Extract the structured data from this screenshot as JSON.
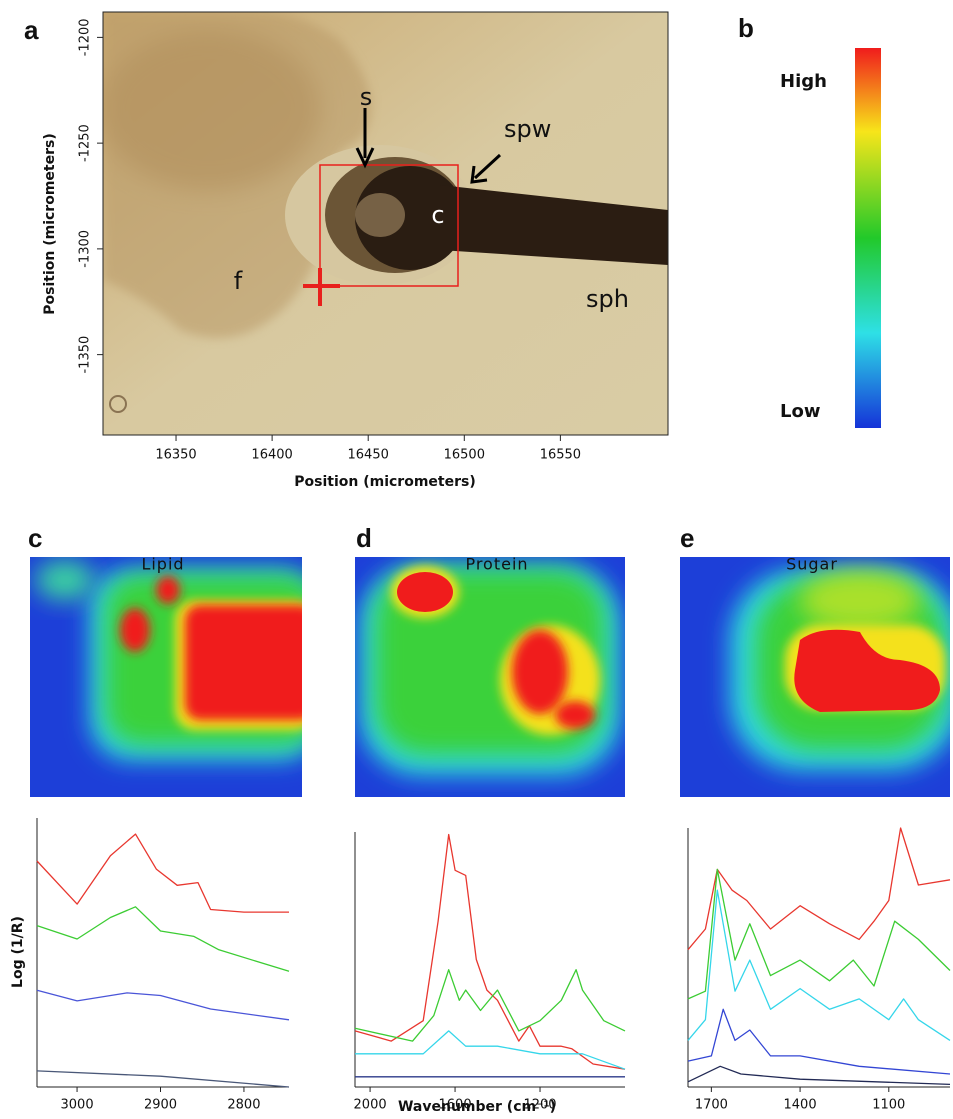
{
  "chart_data": [
    {
      "type": "image",
      "panel": "a",
      "xlabel": "Position (micrometers)",
      "ylabel": "Position (micrometers)",
      "xlim": [
        16312,
        16606
      ],
      "ylim": [
        -1388,
        -1188
      ],
      "xticks": [
        16350,
        16400,
        16450,
        16500,
        16550
      ],
      "yticks": [
        -1200,
        -1250,
        -1300,
        -1350
      ],
      "annotations": [
        "s",
        "spw",
        "c",
        "f",
        "sph"
      ]
    },
    {
      "type": "colorbar",
      "panel": "b",
      "labels": [
        "High",
        "Low"
      ]
    },
    {
      "type": "heatmap",
      "panel": "c",
      "title": "Lipid"
    },
    {
      "type": "heatmap",
      "panel": "d",
      "title": "Protein"
    },
    {
      "type": "heatmap",
      "panel": "e",
      "title": "Sugar"
    },
    {
      "type": "line",
      "ylabel": "Log (1/R)",
      "xlim": [
        3048,
        2746
      ],
      "ylim": [
        0,
        100
      ],
      "xticks": [
        3000,
        2900,
        2800
      ],
      "series": [
        {
          "color": "#e8372f",
          "x": [
            3048,
            3000,
            2960,
            2930,
            2905,
            2880,
            2855,
            2840,
            2800,
            2746
          ],
          "values": [
            84,
            68,
            86,
            94,
            81,
            75,
            76,
            66,
            65,
            65
          ]
        },
        {
          "color": "#3ccc33",
          "x": [
            3048,
            3000,
            2960,
            2930,
            2900,
            2860,
            2830,
            2746
          ],
          "values": [
            60,
            55,
            63,
            67,
            58,
            56,
            51,
            43
          ]
        },
        {
          "color": "#4a55d8",
          "x": [
            3048,
            3000,
            2940,
            2900,
            2840,
            2746
          ],
          "values": [
            36,
            32,
            35,
            34,
            29,
            25
          ]
        },
        {
          "color": "#4a5878",
          "x": [
            3048,
            2900,
            2746
          ],
          "values": [
            6,
            4,
            0
          ]
        }
      ]
    },
    {
      "type": "line",
      "xlabel": "Wavenumber (cm⁻¹)",
      "xlim": [
        2071,
        800
      ],
      "ylim": [
        0,
        100
      ],
      "xticks": [
        2000,
        1600,
        1200
      ],
      "series": [
        {
          "color": "#e8372f",
          "x": [
            2071,
            1900,
            1750,
            1680,
            1630,
            1600,
            1550,
            1500,
            1450,
            1400,
            1300,
            1250,
            1200,
            1100,
            1050,
            950,
            800
          ],
          "values": [
            22,
            18,
            26,
            65,
            99,
            85,
            83,
            50,
            38,
            34,
            18,
            24,
            16,
            16,
            15,
            9,
            7
          ]
        },
        {
          "color": "#3ccc33",
          "x": [
            2071,
            1800,
            1700,
            1630,
            1580,
            1550,
            1480,
            1400,
            1300,
            1200,
            1100,
            1030,
            1000,
            900,
            800
          ],
          "values": [
            23,
            18,
            28,
            46,
            34,
            38,
            30,
            38,
            22,
            26,
            34,
            46,
            38,
            26,
            22
          ]
        },
        {
          "color": "#35d6ea",
          "x": [
            2071,
            1750,
            1630,
            1550,
            1400,
            1200,
            1000,
            800
          ],
          "values": [
            13,
            13,
            22,
            16,
            16,
            13,
            13,
            7
          ]
        },
        {
          "color": "#2b3a8a",
          "x": [
            2071,
            1400,
            800
          ],
          "values": [
            4,
            4,
            4
          ]
        }
      ]
    },
    {
      "type": "line",
      "xlim": [
        1779,
        893
      ],
      "ylim": [
        0,
        100
      ],
      "xticks": [
        1700,
        1400,
        1100
      ],
      "series": [
        {
          "color": "#e8372f",
          "x": [
            1779,
            1720,
            1680,
            1630,
            1580,
            1500,
            1400,
            1300,
            1200,
            1150,
            1100,
            1060,
            1000,
            893
          ],
          "values": [
            53,
            61,
            84,
            76,
            72,
            61,
            70,
            63,
            57,
            64,
            72,
            100,
            78,
            80
          ]
        },
        {
          "color": "#3ccc33",
          "x": [
            1779,
            1720,
            1680,
            1620,
            1570,
            1500,
            1400,
            1300,
            1220,
            1150,
            1080,
            1000,
            893
          ],
          "values": [
            34,
            37,
            84,
            49,
            63,
            43,
            49,
            41,
            49,
            39,
            64,
            57,
            45
          ]
        },
        {
          "color": "#35d6ea",
          "x": [
            1779,
            1720,
            1680,
            1620,
            1570,
            1500,
            1400,
            1300,
            1200,
            1100,
            1050,
            1000,
            893
          ],
          "values": [
            18,
            26,
            76,
            37,
            49,
            30,
            38,
            30,
            34,
            26,
            34,
            26,
            18
          ]
        },
        {
          "color": "#3346d4",
          "x": [
            1779,
            1700,
            1660,
            1620,
            1570,
            1500,
            1400,
            1200,
            893
          ],
          "values": [
            10,
            12,
            30,
            18,
            22,
            12,
            12,
            8,
            5
          ]
        },
        {
          "color": "#222a55",
          "x": [
            1779,
            1670,
            1600,
            1400,
            893
          ],
          "values": [
            2,
            8,
            5,
            3,
            1
          ]
        }
      ]
    }
  ]
}
